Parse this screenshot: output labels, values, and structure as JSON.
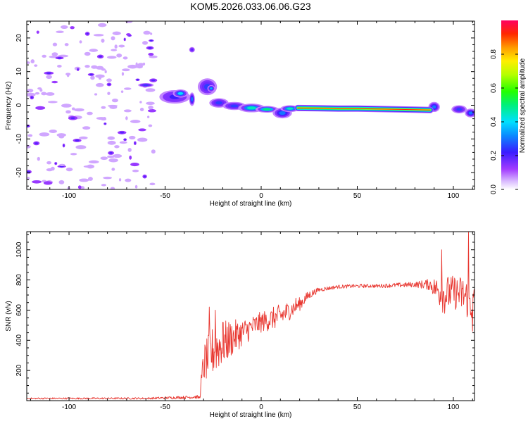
{
  "title": "KOM5.2026.033.06.06.G23",
  "colors": {
    "snr_line": "#e8362f",
    "frame": "#000000"
  },
  "chart_data": [
    {
      "type": "heatmap",
      "name": "spectrogram",
      "xlabel": "Height of straight line (km)",
      "ylabel": "Frequency (Hz)",
      "xlim": [
        -122,
        111
      ],
      "ylim": [
        -25,
        25
      ],
      "xticks": [
        -100,
        -50,
        0,
        50,
        100
      ],
      "yticks": [
        -20,
        -10,
        0,
        10,
        20
      ],
      "colorbar": {
        "label": "Normalized spectral amplitude",
        "range": [
          0,
          1
        ],
        "ticks": [
          "0.0",
          "0.2",
          "0.4",
          "0.6",
          "0.8"
        ]
      },
      "noise_region_x": [
        -122,
        -55
      ],
      "noise_density": 0.5,
      "blobs": [
        {
          "x": -60,
          "y": 6,
          "rx": 4,
          "ry": 0.6,
          "v": 0.25
        },
        {
          "x": -45,
          "y": 2.5,
          "rx": 8,
          "ry": 2,
          "v": 0.22
        },
        {
          "x": -42,
          "y": 3.5,
          "rx": 4,
          "ry": 1.2,
          "v": 0.4
        },
        {
          "x": -36,
          "y": 1.8,
          "rx": 1.5,
          "ry": 2,
          "v": 0.3
        },
        {
          "x": -36,
          "y": 16.5,
          "rx": 1.5,
          "ry": 0.8,
          "v": 0.2
        },
        {
          "x": -28,
          "y": 5.5,
          "rx": 5,
          "ry": 2.5,
          "v": 0.25
        },
        {
          "x": -26,
          "y": 5,
          "rx": 2,
          "ry": 1,
          "v": 0.35
        },
        {
          "x": -22,
          "y": 0.7,
          "rx": 5,
          "ry": 1.4,
          "v": 0.25
        },
        {
          "x": -14,
          "y": -0.2,
          "rx": 6,
          "ry": 1.2,
          "v": 0.25
        },
        {
          "x": -5,
          "y": -0.8,
          "rx": 7,
          "ry": 1.3,
          "v": 0.45
        },
        {
          "x": 3,
          "y": -1.2,
          "rx": 6,
          "ry": 1,
          "v": 0.5
        },
        {
          "x": 11,
          "y": -2.3,
          "rx": 5,
          "ry": 1.6,
          "v": 0.3
        },
        {
          "x": 15,
          "y": -1,
          "rx": 5,
          "ry": 1,
          "v": 0.45
        },
        {
          "x": 90,
          "y": -0.5,
          "rx": 3,
          "ry": 1.5,
          "v": 0.3
        },
        {
          "x": 103,
          "y": -1.2,
          "rx": 4,
          "ry": 1.2,
          "v": 0.25
        },
        {
          "x": 109,
          "y": -2.3,
          "rx": 3,
          "ry": 1.3,
          "v": 0.3
        }
      ],
      "ridge": [
        {
          "x": 19,
          "y": -0.8
        },
        {
          "x": 30,
          "y": -0.9
        },
        {
          "x": 40,
          "y": -1
        },
        {
          "x": 50,
          "y": -1
        },
        {
          "x": 60,
          "y": -1.1
        },
        {
          "x": 70,
          "y": -1.2
        },
        {
          "x": 80,
          "y": -1.3
        },
        {
          "x": 88,
          "y": -1.4
        }
      ]
    },
    {
      "type": "line",
      "name": "snr",
      "xlabel": "Height of straight line (km)",
      "ylabel": "SNR (v/v)",
      "xlim": [
        -122,
        111
      ],
      "ylim": [
        0,
        1120
      ],
      "xticks": [
        -100,
        -50,
        0,
        50,
        100
      ],
      "yticks": [
        200,
        400,
        600,
        800,
        1000
      ],
      "envelope": {
        "x": [
          -122,
          -60,
          -40,
          -34,
          -32,
          -30,
          -25,
          -20,
          -10,
          0,
          10,
          20,
          25,
          30,
          40,
          50,
          60,
          70,
          80,
          88,
          95,
          100,
          105,
          111
        ],
        "mean": [
          15,
          15,
          22,
          25,
          20,
          240,
          330,
          380,
          450,
          520,
          560,
          640,
          700,
          735,
          755,
          760,
          760,
          765,
          770,
          770,
          700,
          720,
          700,
          640
        ],
        "amp": [
          5,
          6,
          10,
          12,
          12,
          130,
          170,
          150,
          90,
          70,
          80,
          45,
          30,
          15,
          12,
          12,
          12,
          15,
          18,
          40,
          130,
          110,
          130,
          150
        ]
      },
      "spikes": [
        {
          "x": -27,
          "y": 620
        },
        {
          "x": -24,
          "y": 600
        },
        {
          "x": -20,
          "y": 520
        },
        {
          "x": 12,
          "y": 580
        },
        {
          "x": 18,
          "y": 680
        },
        {
          "x": 94,
          "y": 1000
        },
        {
          "x": 108,
          "y": 1120
        },
        {
          "x": 110,
          "y": 460
        }
      ]
    }
  ]
}
